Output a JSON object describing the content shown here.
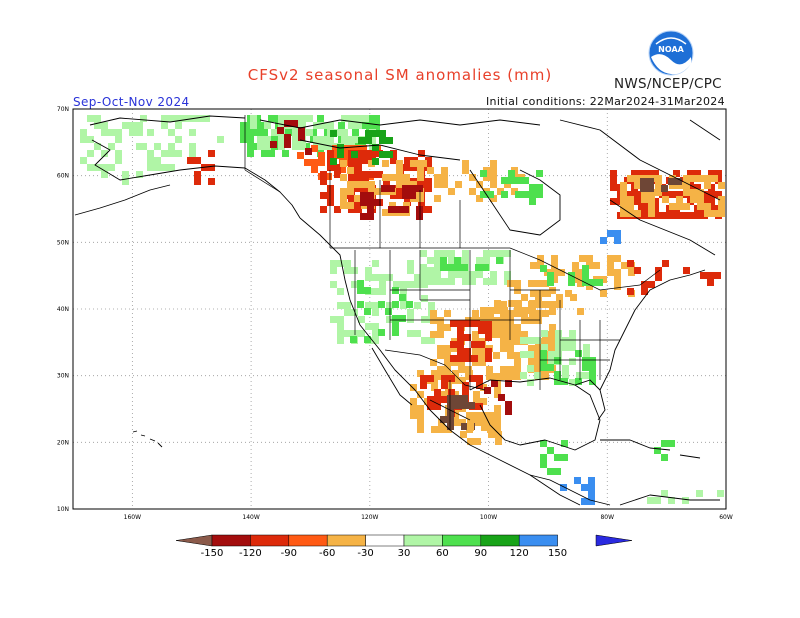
{
  "header": {
    "title": "CFSv2 seasonal SM anomalies (mm)",
    "agency": "NWS/NCEP/CPC",
    "season": "Sep-Oct-Nov 2024",
    "initial_conditions": "Initial conditions: 22Mar2024-31Mar2024",
    "logo_text": "NOAA"
  },
  "axes": {
    "lat_labels": [
      "70N",
      "60N",
      "50N",
      "40N",
      "30N",
      "20N",
      "10N"
    ],
    "lon_labels": [
      "160W",
      "140W",
      "120W",
      "100W",
      "80W",
      "60W"
    ],
    "lat_values": [
      70,
      60,
      50,
      40,
      30,
      20,
      10
    ],
    "lon_values": [
      -160,
      -140,
      -120,
      -100,
      -80,
      -60
    ],
    "lon_range": [
      -170,
      -60
    ],
    "lat_range": [
      10,
      70
    ],
    "gridlines": "dotted"
  },
  "colorbar": {
    "labels": [
      "-150",
      "-120",
      "-90",
      "-60",
      "-30",
      "30",
      "60",
      "90",
      "120",
      "150"
    ],
    "colors": [
      "#8b5a4a",
      "#a30d0d",
      "#dd2a0a",
      "#ff5a14",
      "#f5b346",
      "#ffffff",
      "#b0f5a6",
      "#4ee04e",
      "#18a318",
      "#3a8ef0",
      "#2a2ae0"
    ]
  },
  "map_colors": {
    "dry_extreme": "#6e4636",
    "dry_strong": "#a30d0d",
    "dry_high": "#dd2a0a",
    "dry_moderate": "#ff5a14",
    "dry_light": "#f5b346",
    "wet_light": "#b0f5a6",
    "wet_moderate": "#4ee04e",
    "wet_high": "#18a318",
    "wet_strong": "#3a8ef0"
  }
}
